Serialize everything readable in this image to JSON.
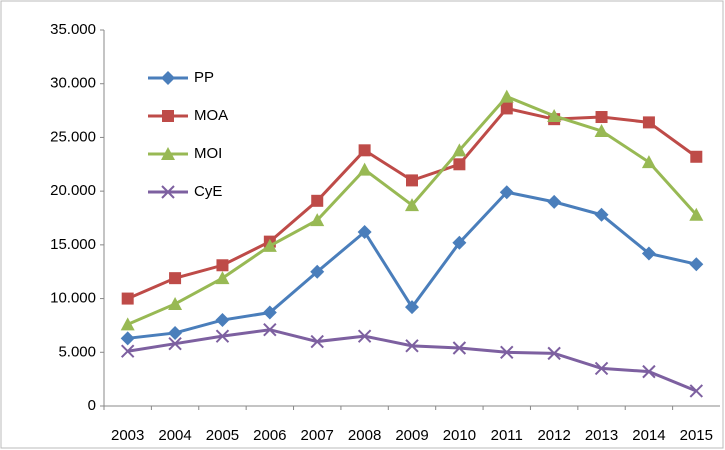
{
  "chart_data": {
    "type": "line",
    "categories": [
      "2003",
      "2004",
      "2005",
      "2006",
      "2007",
      "2008",
      "2009",
      "2010",
      "2011",
      "2012",
      "2013",
      "2014",
      "2015"
    ],
    "series": [
      {
        "name": "PP",
        "color": "#4a7ebb",
        "marker": "diamond",
        "values": [
          6300,
          6800,
          8000,
          8700,
          12500,
          16200,
          9200,
          15200,
          19900,
          19000,
          17800,
          14200,
          13200
        ]
      },
      {
        "name": "MOA",
        "color": "#be4b48",
        "marker": "square",
        "values": [
          10000,
          11900,
          13100,
          15300,
          19100,
          23800,
          21000,
          22500,
          27700,
          26700,
          26900,
          26400,
          23200
        ]
      },
      {
        "name": "MOI",
        "color": "#98b954",
        "marker": "triangle",
        "values": [
          7600,
          9500,
          11900,
          14900,
          17300,
          22000,
          18700,
          23800,
          28800,
          27000,
          25600,
          22700,
          17800
        ]
      },
      {
        "name": "CyE",
        "color": "#7d60a0",
        "marker": "x",
        "values": [
          5100,
          5800,
          6500,
          7100,
          6000,
          6500,
          5600,
          5400,
          5000,
          4900,
          3500,
          3200,
          1400
        ]
      }
    ],
    "ylim": [
      0,
      35000
    ],
    "yticks": [
      0,
      {
        "value": 5000,
        "label": "5.000"
      },
      {
        "value": 10000,
        "label": "10.000"
      },
      {
        "value": 15000,
        "label": "15.000"
      },
      {
        "value": 20000,
        "label": "20.000"
      },
      {
        "value": 25000,
        "label": "25.000"
      },
      {
        "value": 30000,
        "label": "30.000"
      },
      {
        "value": 35000,
        "label": "35.000"
      }
    ],
    "legend": "upper-left"
  }
}
